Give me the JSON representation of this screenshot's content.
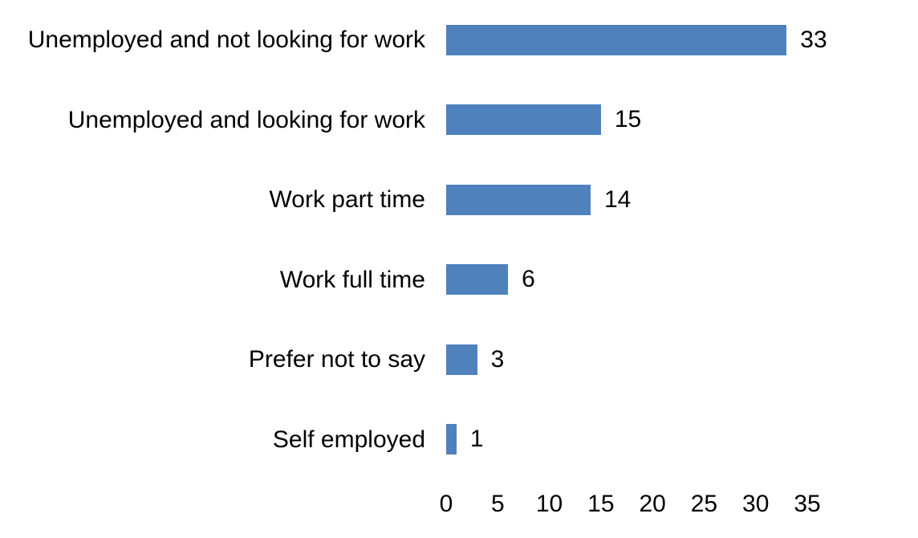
{
  "chart_data": {
    "type": "bar",
    "orientation": "horizontal",
    "title": "",
    "xlabel": "",
    "ylabel": "",
    "categories": [
      "Unemployed and not looking for work",
      "Unemployed and looking for work",
      "Work part time",
      "Work full time",
      "Prefer not to say",
      "Self employed"
    ],
    "values": [
      33,
      15,
      14,
      6,
      3,
      1
    ],
    "value_labels": [
      "33",
      "15",
      "14",
      "6",
      "3",
      "1"
    ],
    "xlim": [
      0,
      35
    ],
    "x_ticks": [
      "0",
      "5",
      "10",
      "15",
      "20",
      "25",
      "30",
      "35"
    ],
    "x_tick_values": [
      0,
      5,
      10,
      15,
      20,
      25,
      30,
      35
    ],
    "grid": false,
    "legend": false,
    "bar_color": "#4f81bd",
    "text_color": "#000000",
    "background_color": "#ffffff"
  }
}
